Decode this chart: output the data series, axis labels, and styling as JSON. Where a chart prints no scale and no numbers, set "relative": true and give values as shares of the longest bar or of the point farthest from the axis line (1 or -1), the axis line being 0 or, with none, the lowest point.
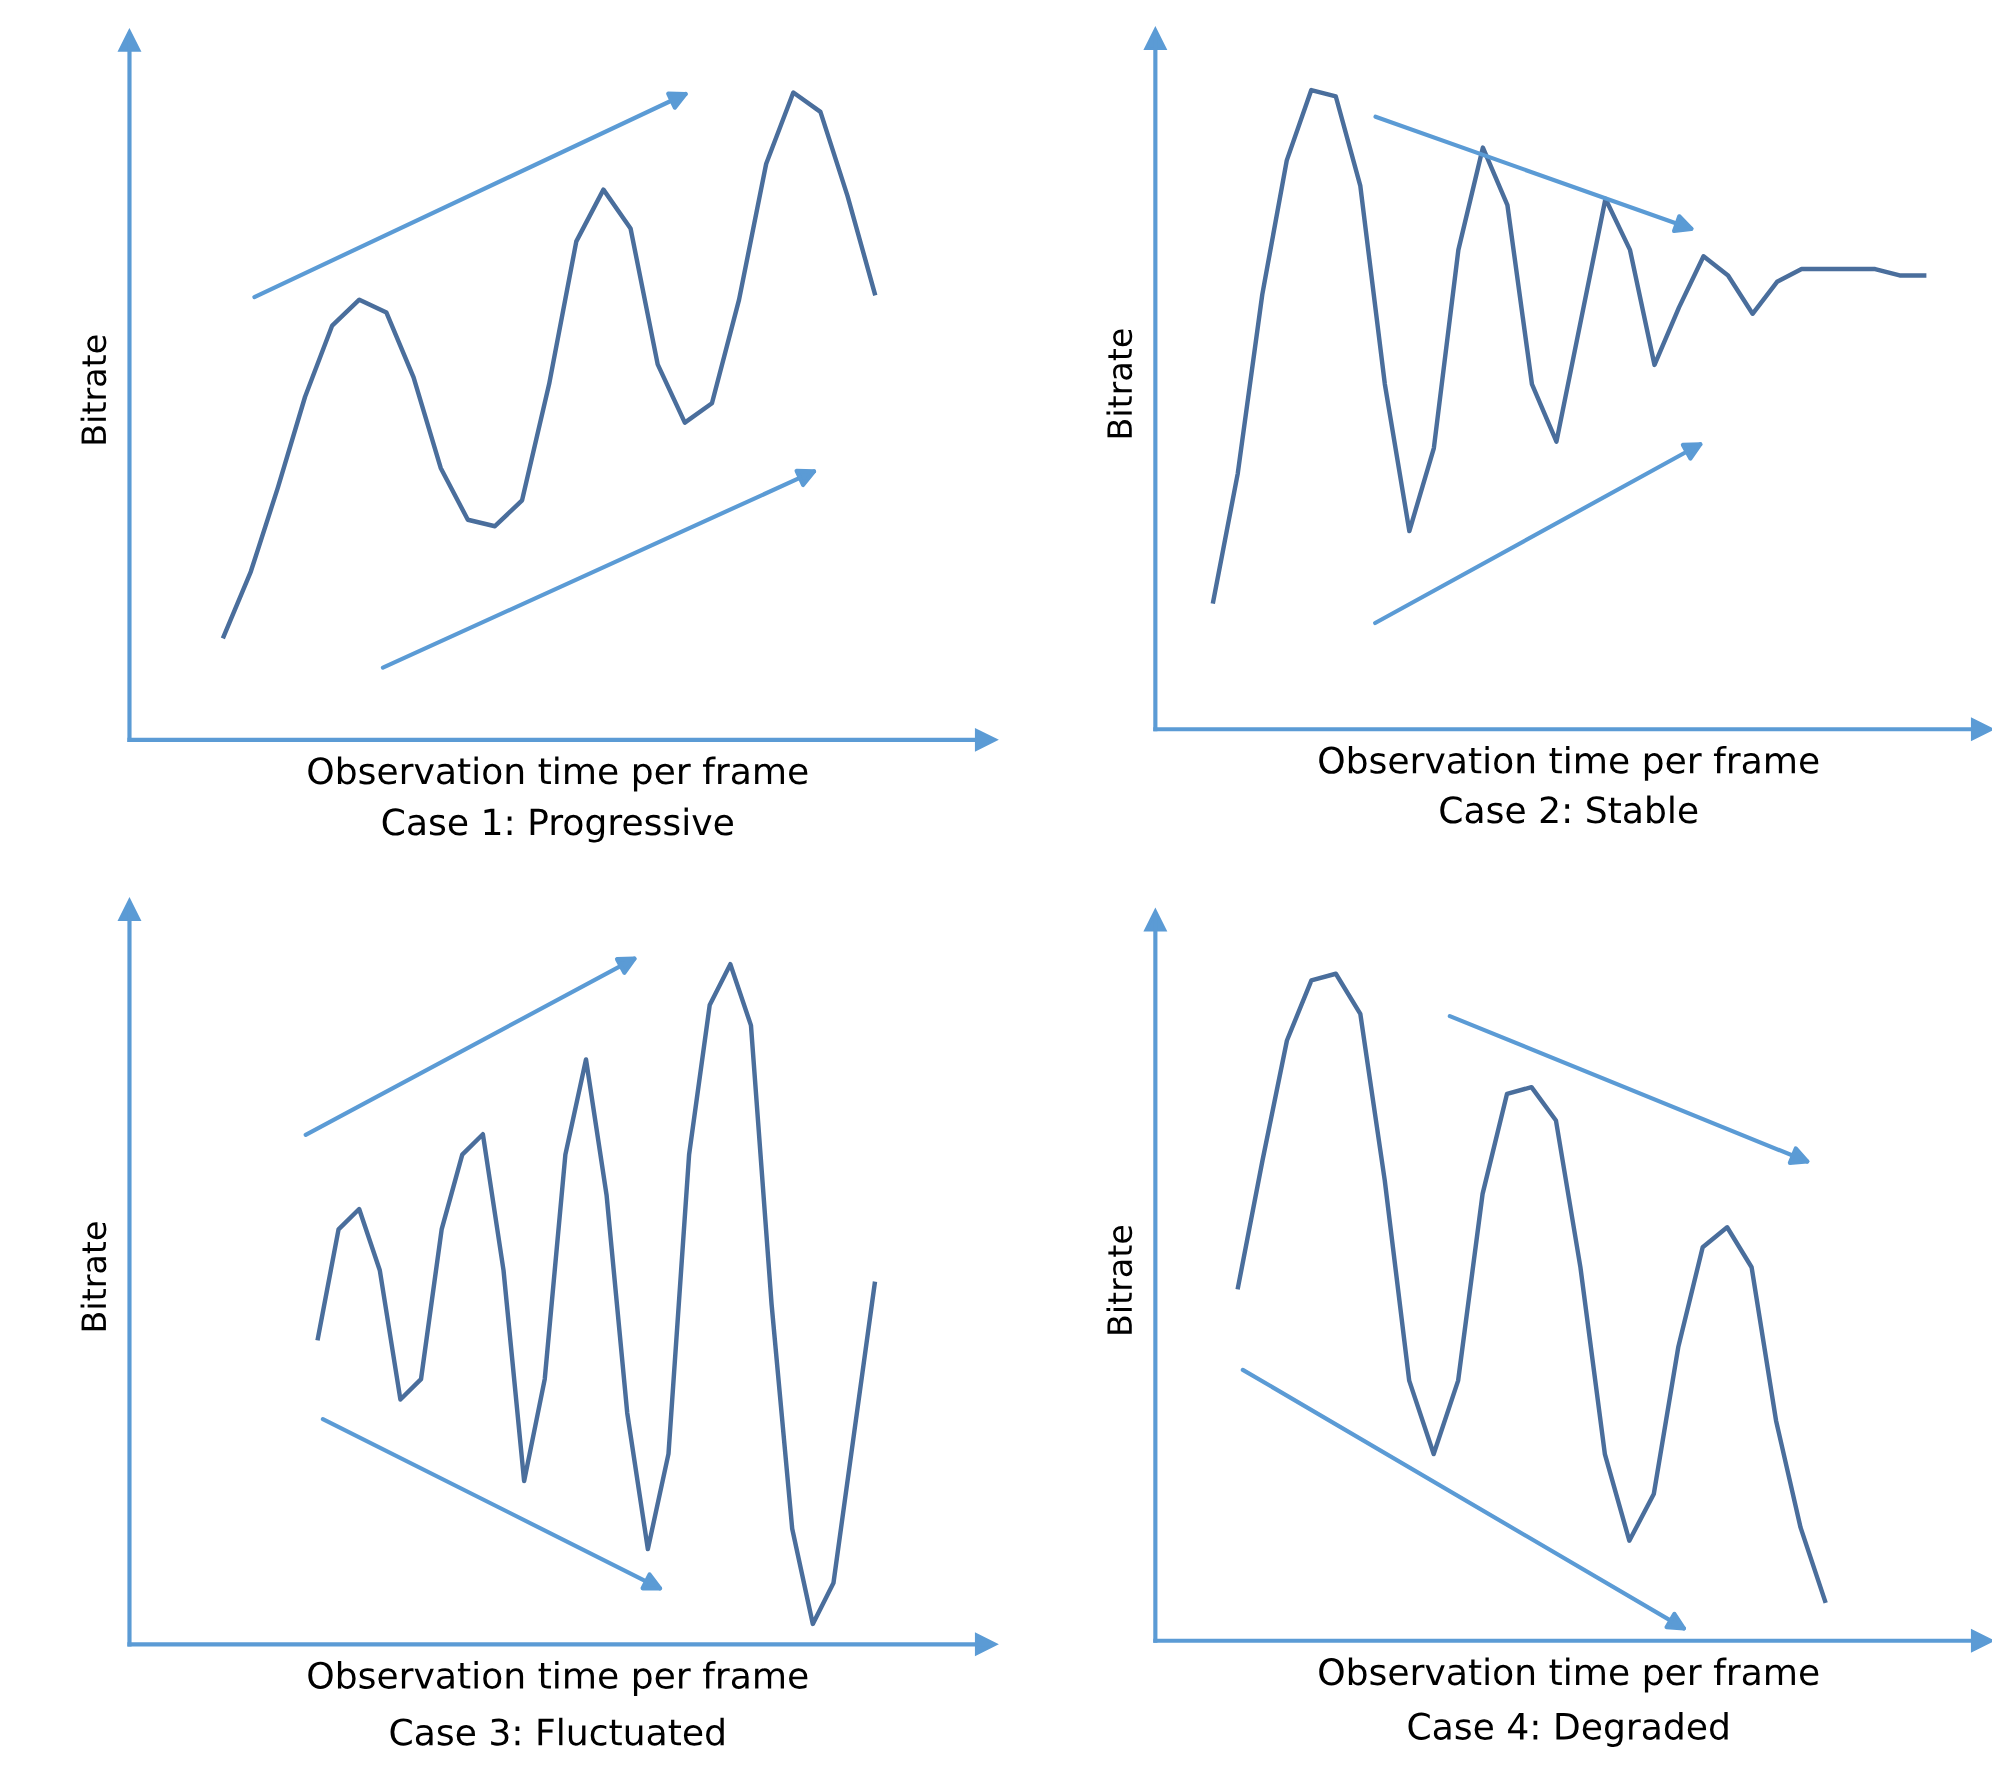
{
  "chart_data": [
    {
      "type": "line",
      "relative": true,
      "title": "Case 1: Progressive",
      "xlabel": "Observation time per frame",
      "ylabel": "Bitrate",
      "categories": [
        null,
        null,
        null,
        null,
        null,
        null,
        null,
        null,
        null,
        null,
        null,
        null,
        null,
        null,
        null,
        null,
        null,
        null,
        null,
        null,
        null,
        null,
        null,
        null,
        null
      ],
      "series": [
        {
          "color": "#4a6e9c",
          "values": [
            0.16,
            0.26,
            0.39,
            0.53,
            0.64,
            0.68,
            0.66,
            0.56,
            0.42,
            0.34,
            0.33,
            0.37,
            0.55,
            0.77,
            0.85,
            0.79,
            0.58,
            0.49,
            0.52,
            0.68,
            0.89,
            1.0,
            0.97,
            0.84,
            0.69
          ]
        }
      ]
    },
    {
      "type": "line",
      "relative": true,
      "title": "Case 2: Stable",
      "xlabel": "Observation time per frame",
      "ylabel": "Bitrate",
      "categories": [
        null,
        null,
        null,
        null,
        null,
        null,
        null,
        null,
        null,
        null,
        null,
        null,
        null,
        null,
        null,
        null,
        null,
        null,
        null,
        null,
        null,
        null,
        null,
        null,
        null,
        null,
        null,
        null,
        null,
        null
      ],
      "series": [
        {
          "color": "#4a6e9c",
          "values": [
            0.2,
            0.4,
            0.68,
            0.89,
            1.0,
            0.99,
            0.85,
            0.54,
            0.31,
            0.44,
            0.75,
            0.91,
            0.82,
            0.54,
            0.45,
            0.64,
            0.83,
            0.75,
            0.57,
            0.66,
            0.74,
            0.71,
            0.65,
            0.7,
            0.72,
            0.72,
            0.72,
            0.72,
            0.71,
            0.71
          ]
        }
      ]
    },
    {
      "type": "line",
      "relative": true,
      "title": "Case 3: Fluctuated",
      "xlabel": "Observation time per frame",
      "ylabel": "Bitrate",
      "categories": [
        null,
        null,
        null,
        null,
        null,
        null,
        null,
        null,
        null,
        null,
        null,
        null,
        null,
        null,
        null,
        null,
        null,
        null,
        null,
        null,
        null,
        null,
        null,
        null,
        null,
        null,
        null,
        null
      ],
      "series": [
        {
          "color": "#4a6e9c",
          "values": [
            0.45,
            0.61,
            0.64,
            0.55,
            0.36,
            0.39,
            0.61,
            0.72,
            0.75,
            0.55,
            0.24,
            0.39,
            0.72,
            0.86,
            0.66,
            0.34,
            0.14,
            0.28,
            0.72,
            0.94,
            1.0,
            0.91,
            0.5,
            0.17,
            0.03,
            0.09,
            0.31,
            0.53
          ]
        }
      ]
    },
    {
      "type": "line",
      "relative": true,
      "title": "Case 4: Degraded",
      "xlabel": "Observation time per frame",
      "ylabel": "Bitrate",
      "categories": [
        null,
        null,
        null,
        null,
        null,
        null,
        null,
        null,
        null,
        null,
        null,
        null,
        null,
        null,
        null,
        null,
        null,
        null,
        null,
        null,
        null,
        null,
        null,
        null,
        null
      ],
      "series": [
        {
          "color": "#4a6e9c",
          "values": [
            0.53,
            0.72,
            0.9,
            0.99,
            1.0,
            0.94,
            0.69,
            0.39,
            0.28,
            0.39,
            0.67,
            0.82,
            0.83,
            0.78,
            0.56,
            0.28,
            0.15,
            0.22,
            0.44,
            0.59,
            0.62,
            0.56,
            0.33,
            0.17,
            0.06
          ]
        }
      ]
    }
  ]
}
